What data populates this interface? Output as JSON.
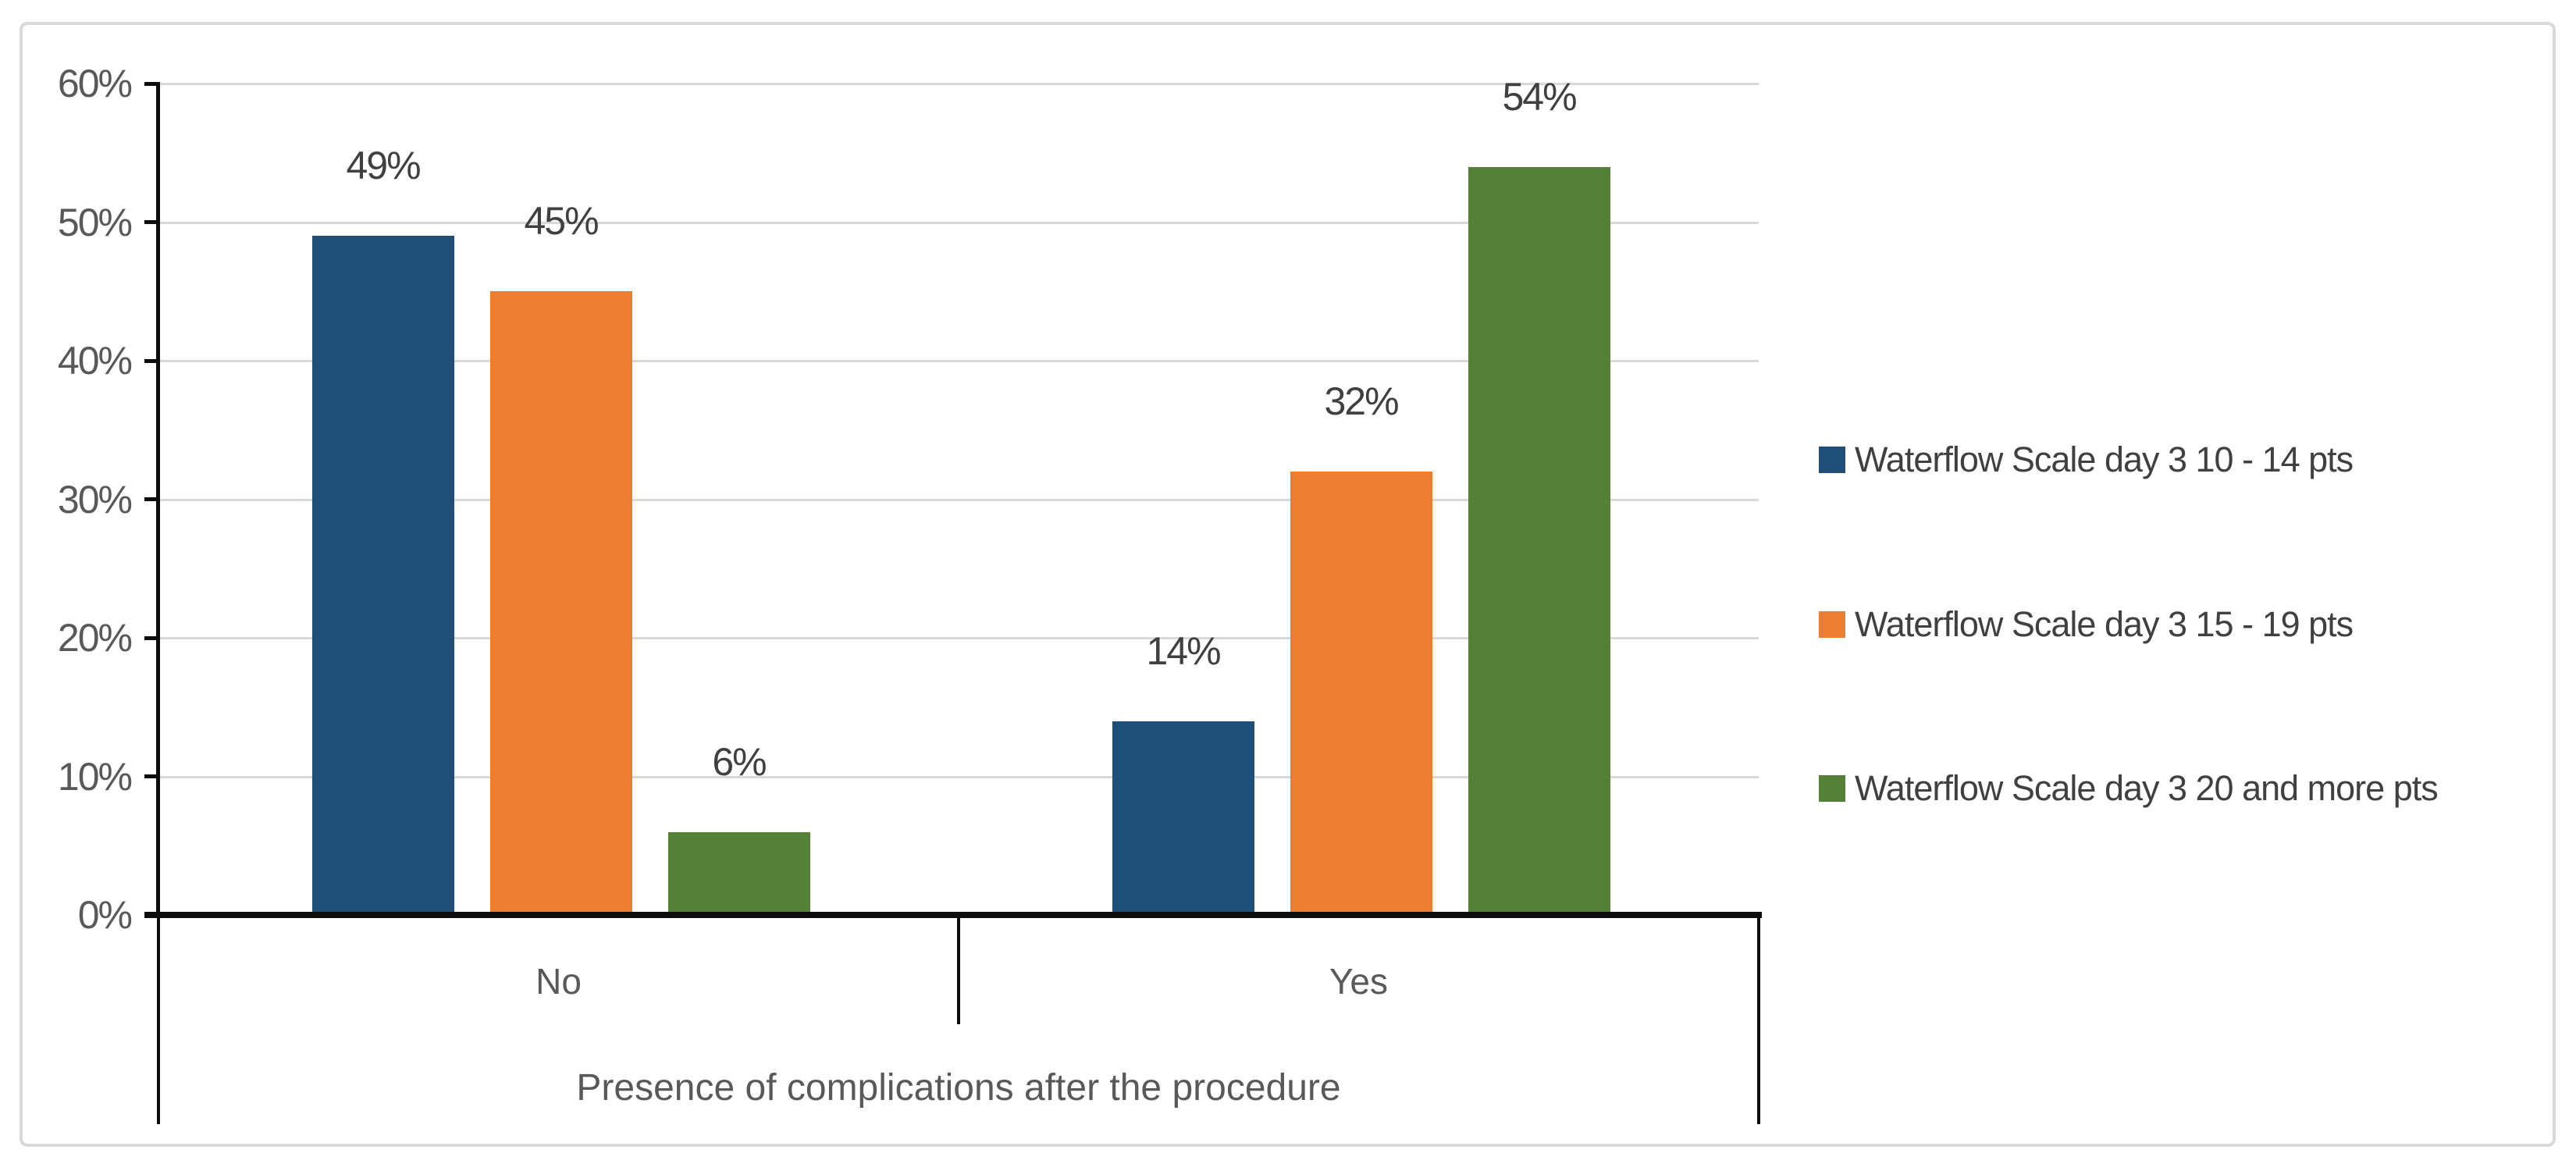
{
  "chart_data": {
    "type": "bar",
    "title": "",
    "categories": [
      "No",
      "Yes"
    ],
    "series": [
      {
        "name": "Waterflow Scale day 3 10 - 14 pts",
        "color": "#1F4E79",
        "values": [
          49,
          14
        ]
      },
      {
        "name": "Waterflow Scale day 3 15 - 19 pts",
        "color": "#ED7D31",
        "values": [
          45,
          32
        ]
      },
      {
        "name": "Waterflow Scale day 3 20 and more pts",
        "color": "#538135",
        "values": [
          6,
          54
        ]
      }
    ],
    "value_label_suffix": "%",
    "xlabel": "Presence of complications after the procedure",
    "ylabel": "",
    "ylim": [
      0,
      60
    ],
    "y_ticks": [
      0,
      10,
      20,
      30,
      40,
      50,
      60
    ],
    "y_tick_labels": [
      "0%",
      "10%",
      "20%",
      "30%",
      "40%",
      "50%",
      "60%"
    ],
    "grid": true,
    "legend_position": "right"
  },
  "colors": {
    "gridline": "#d9d9d9",
    "frame_border": "#d9d9d9",
    "axis_line": "#0d0d0d",
    "axis_text": "#595959",
    "data_label_text": "#404040",
    "legend_text": "#404040",
    "background": "#ffffff"
  }
}
